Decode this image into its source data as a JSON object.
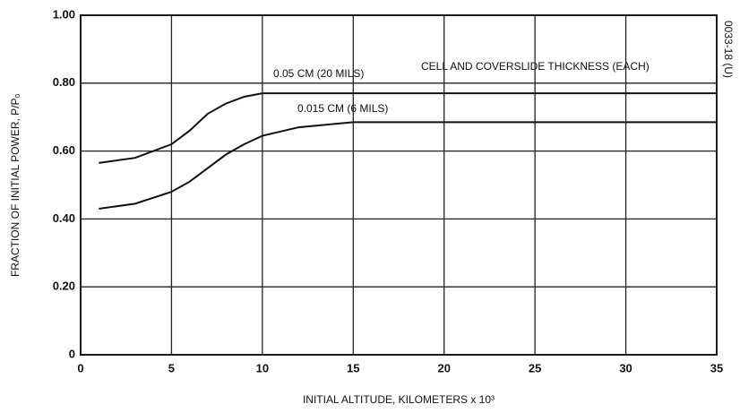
{
  "chart_data": {
    "type": "line",
    "x_label": "INITIAL ALTITUDE, KILOMETERS x 10³",
    "y_label": "FRACTION OF INITIAL POWER, P/Pₒ",
    "annotations": [
      "CELL AND COVERSLIDE THICKNESS (EACH)",
      "0033-18 (U)"
    ],
    "series": [
      {
        "name": "0.05 CM (20 MILS)",
        "color": "#111111",
        "x": [
          1,
          3,
          5,
          6,
          7,
          8,
          9,
          10,
          15,
          35
        ],
        "values": [
          0.565,
          0.58,
          0.62,
          0.66,
          0.71,
          0.74,
          0.76,
          0.77,
          0.77,
          0.77
        ]
      },
      {
        "name": "0.015 CM (6 MILS)",
        "color": "#111111",
        "x": [
          1,
          3,
          5,
          6,
          7,
          8,
          9,
          10,
          12,
          15,
          35
        ],
        "values": [
          0.43,
          0.445,
          0.48,
          0.51,
          0.55,
          0.59,
          0.62,
          0.645,
          0.67,
          0.685,
          0.685
        ]
      }
    ],
    "xlim": [
      0,
      35
    ],
    "xticks": [
      0,
      5,
      10,
      15,
      20,
      25,
      30,
      35
    ],
    "ylim": [
      0,
      1.0
    ],
    "yticks": [
      0,
      {
        "value": 0.2,
        "label": "0.20"
      },
      {
        "value": 0.4,
        "label": "0.40"
      },
      {
        "value": 0.6,
        "label": "0.60"
      },
      {
        "value": 0.8,
        "label": "0.80"
      },
      {
        "value": 1.0,
        "label": "1.00"
      }
    ],
    "grid": true
  }
}
